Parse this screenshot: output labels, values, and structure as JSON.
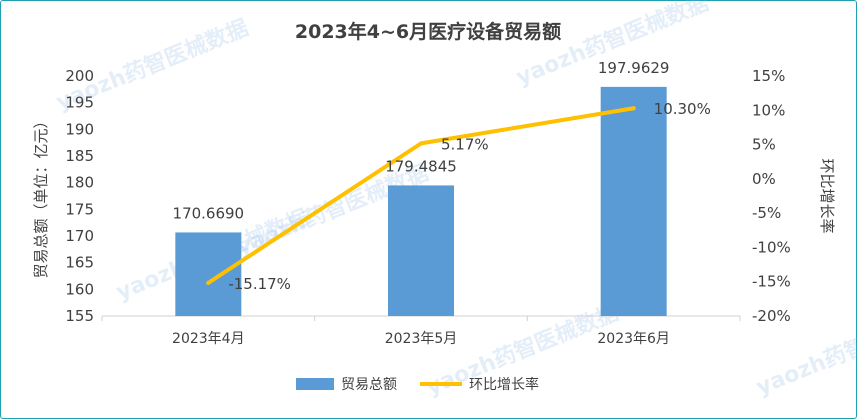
{
  "chart_data": {
    "type": "bar",
    "title": "2023年4~6月医疗设备贸易额",
    "categories": [
      "2023年4月",
      "2023年5月",
      "2023年6月"
    ],
    "series": [
      {
        "name": "贸易总额",
        "type": "bar",
        "axis": "left",
        "color": "#5b9bd5",
        "values": [
          170.669,
          179.4845,
          197.9629
        ],
        "labels": [
          "170.6690",
          "179.4845",
          "197.9629"
        ]
      },
      {
        "name": "环比增长率",
        "type": "line",
        "axis": "right",
        "color": "#ffc000",
        "values": [
          -15.17,
          5.17,
          10.3
        ],
        "labels": [
          "-15.17%",
          "5.17%",
          "10.30%"
        ]
      }
    ],
    "ylabel": "贸易总额（单位：亿元）",
    "ylabel_right": "环比增长率",
    "ylim": [
      155,
      200
    ],
    "yticks": [
      155,
      160,
      165,
      170,
      175,
      180,
      185,
      190,
      195,
      200
    ],
    "ylim_right": [
      -20,
      15
    ],
    "yticks_right": [
      "-20%",
      "-15%",
      "-10%",
      "-5%",
      "0%",
      "5%",
      "10%",
      "15%"
    ],
    "yticks_right_values": [
      -20,
      -15,
      -10,
      -5,
      0,
      5,
      10,
      15
    ],
    "grid": false,
    "legend_position": "bottom",
    "watermark": "yaozh药智医械数据"
  }
}
